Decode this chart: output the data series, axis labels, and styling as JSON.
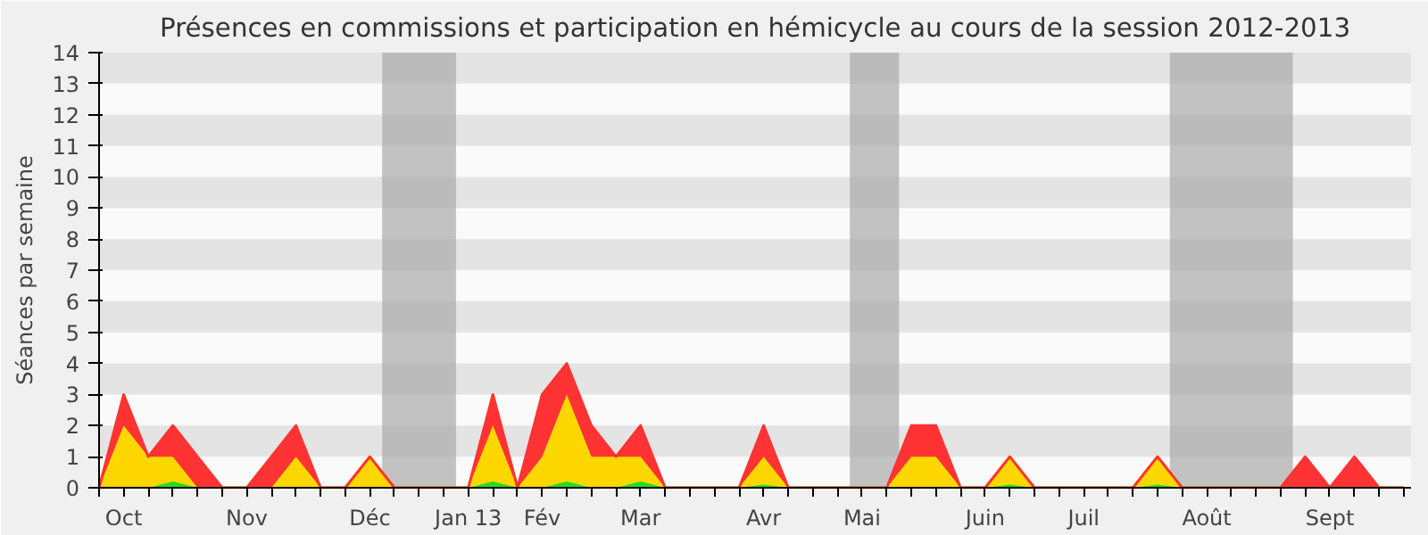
{
  "chart_data": {
    "type": "area",
    "stacked": true,
    "title": "Présences en commissions et participation en hémicycle au cours de la session 2012-2013",
    "ylabel": "Séances par semaine",
    "categories": [
      null,
      "Oct",
      null,
      null,
      null,
      null,
      "Nov",
      null,
      null,
      null,
      null,
      "Déc",
      null,
      null,
      null,
      "Jan 13",
      null,
      null,
      "Fév",
      null,
      null,
      null,
      "Mar",
      null,
      null,
      null,
      null,
      "Avr",
      null,
      null,
      null,
      "Mai",
      null,
      null,
      null,
      null,
      "Juin",
      null,
      null,
      null,
      "Juil",
      null,
      null,
      null,
      null,
      "Août",
      null,
      null,
      null,
      null,
      "Sept",
      null,
      null,
      null
    ],
    "series": [
      {
        "color": "#22dd22",
        "values": [
          0,
          0,
          0,
          0.2,
          0,
          0,
          0,
          0,
          0,
          0,
          0,
          0,
          0,
          0,
          0,
          0,
          0.2,
          0,
          0,
          0.2,
          0,
          0,
          0.2,
          0,
          0,
          0,
          0,
          0.1,
          0,
          0,
          0,
          0,
          0,
          0,
          0,
          0,
          0,
          0.1,
          0,
          0,
          0,
          0,
          0,
          0.1,
          0,
          0,
          0,
          0,
          0,
          0,
          0,
          0,
          0,
          0
        ]
      },
      {
        "color": "#ffd700",
        "values": [
          0,
          2,
          1,
          0.8,
          0,
          0,
          0,
          0,
          1,
          0,
          0,
          1,
          0,
          0,
          0,
          0,
          1.8,
          0,
          1,
          2.8,
          1,
          1,
          0.8,
          0,
          0,
          0,
          0,
          0.9,
          0,
          0,
          0,
          0,
          0,
          1,
          1,
          0,
          0,
          0.9,
          0,
          0,
          0,
          0,
          0,
          0.9,
          0,
          0,
          0,
          0,
          0,
          0,
          0,
          0,
          0,
          0
        ]
      },
      {
        "color": "#ff3333",
        "values": [
          0,
          1,
          0,
          1,
          1,
          0,
          0,
          1,
          1,
          0,
          0,
          0,
          0,
          0,
          0,
          0,
          1,
          0,
          2,
          1,
          1,
          0,
          1,
          0,
          0,
          0,
          0,
          1,
          0,
          0,
          0,
          0,
          0,
          1,
          1,
          0,
          0,
          0,
          0,
          0,
          0,
          0,
          0,
          0,
          0,
          0,
          0,
          0,
          0,
          1,
          0,
          1,
          0,
          0
        ]
      }
    ],
    "ylim": [
      0,
      14
    ],
    "yticks": [
      0,
      1,
      2,
      3,
      4,
      5,
      6,
      7,
      8,
      9,
      10,
      11,
      12,
      13,
      14
    ],
    "grid": false
  }
}
